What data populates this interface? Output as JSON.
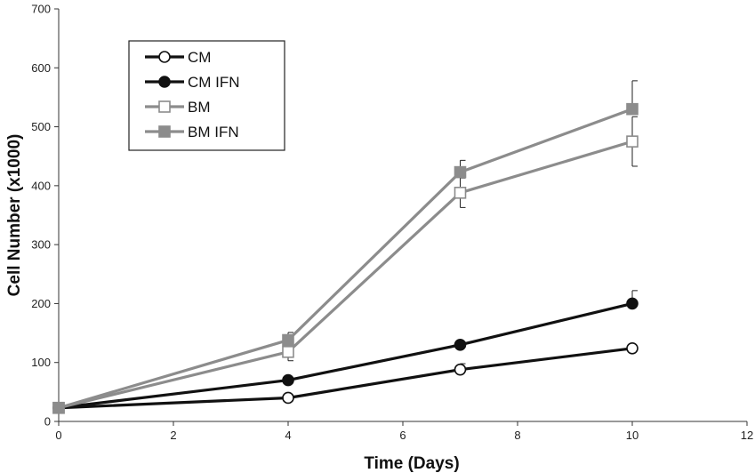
{
  "chart_data": {
    "type": "line",
    "title": "",
    "xlabel": "Time (Days)",
    "ylabel": "Cell Number (x1000)",
    "xlim": [
      0,
      12
    ],
    "ylim": [
      0,
      700
    ],
    "xticks": [
      0,
      2,
      4,
      6,
      8,
      10,
      12
    ],
    "yticks": [
      0,
      100,
      200,
      300,
      400,
      500,
      600,
      700
    ],
    "grid": false,
    "legend_position": "top-left",
    "series": [
      {
        "name": "CM",
        "color": "#111111",
        "marker": "circle-open",
        "x": [
          0,
          4,
          7,
          10
        ],
        "y": [
          23,
          40,
          88,
          124
        ],
        "err": [
          0,
          5,
          10,
          0
        ]
      },
      {
        "name": "CM IFN",
        "color": "#111111",
        "marker": "circle-filled",
        "x": [
          0,
          4,
          7,
          10
        ],
        "y": [
          23,
          70,
          130,
          200
        ],
        "err": [
          0,
          0,
          5,
          22
        ]
      },
      {
        "name": "BM",
        "color": "#8c8c8c",
        "marker": "square-open",
        "x": [
          0,
          4,
          7,
          10
        ],
        "y": [
          23,
          118,
          388,
          475
        ],
        "err": [
          0,
          15,
          25,
          42
        ]
      },
      {
        "name": "BM IFN",
        "color": "#8c8c8c",
        "marker": "square-filled",
        "x": [
          0,
          4,
          7,
          10
        ],
        "y": [
          23,
          138,
          423,
          530
        ],
        "err": [
          0,
          13,
          20,
          48
        ]
      }
    ]
  }
}
